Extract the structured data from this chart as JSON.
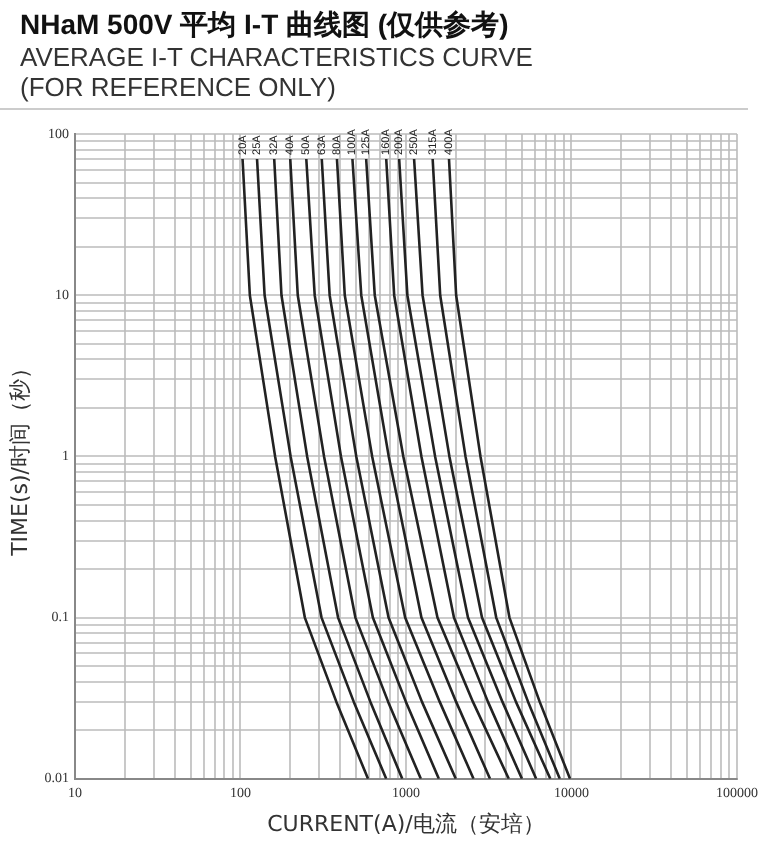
{
  "chart_data": {
    "type": "line",
    "title": "NHaM 500V 平均 I-T 曲线图 (仅供参考)",
    "subtitle": "AVERAGE I-T CHARACTERISTICS CURVE\n(FOR REFERENCE ONLY)",
    "xlabel": "CURRENT(A)/电流（安培）",
    "ylabel": "TIME(s)/时间（秒）",
    "log": "xy",
    "grid": true,
    "legend": false,
    "marker": "none",
    "line_style": "solid",
    "xlim": [
      10,
      100000
    ],
    "ylim": [
      0.01,
      100
    ],
    "xticks": [
      10,
      {
        "value": 20,
        "label": null
      },
      {
        "value": 30,
        "label": null
      },
      {
        "value": 40,
        "label": null
      },
      {
        "value": 50,
        "label": null
      },
      {
        "value": 60,
        "label": null
      },
      {
        "value": 70,
        "label": null
      },
      {
        "value": 80,
        "label": null
      },
      {
        "value": 90,
        "label": null
      },
      100,
      {
        "value": 200,
        "label": null
      },
      {
        "value": 300,
        "label": null
      },
      {
        "value": 400,
        "label": null
      },
      {
        "value": 500,
        "label": null
      },
      {
        "value": 600,
        "label": null
      },
      {
        "value": 700,
        "label": null
      },
      {
        "value": 800,
        "label": null
      },
      {
        "value": 900,
        "label": null
      },
      1000,
      {
        "value": 2000,
        "label": null
      },
      {
        "value": 3000,
        "label": null
      },
      {
        "value": 4000,
        "label": null
      },
      {
        "value": 5000,
        "label": null
      },
      {
        "value": 6000,
        "label": null
      },
      {
        "value": 7000,
        "label": null
      },
      {
        "value": 8000,
        "label": null
      },
      {
        "value": 9000,
        "label": null
      },
      10000,
      {
        "value": 20000,
        "label": null
      },
      {
        "value": 30000,
        "label": null
      },
      {
        "value": 40000,
        "label": null
      },
      {
        "value": 50000,
        "label": null
      },
      {
        "value": 60000,
        "label": null
      },
      {
        "value": 70000,
        "label": null
      },
      {
        "value": 80000,
        "label": null
      },
      {
        "value": 90000,
        "label": null
      },
      100000
    ],
    "yticks": [
      0.01,
      {
        "value": 0.02,
        "label": null
      },
      {
        "value": 0.03,
        "label": null
      },
      {
        "value": 0.04,
        "label": null
      },
      {
        "value": 0.05,
        "label": null
      },
      {
        "value": 0.06,
        "label": null
      },
      {
        "value": 0.07,
        "label": null
      },
      {
        "value": 0.08,
        "label": null
      },
      {
        "value": 0.09,
        "label": null
      },
      0.1,
      {
        "value": 0.2,
        "label": null
      },
      {
        "value": 0.3,
        "label": null
      },
      {
        "value": 0.4,
        "label": null
      },
      {
        "value": 0.5,
        "label": null
      },
      {
        "value": 0.6,
        "label": null
      },
      {
        "value": 0.7,
        "label": null
      },
      {
        "value": 0.8,
        "label": null
      },
      {
        "value": 0.9,
        "label": null
      },
      1,
      {
        "value": 2,
        "label": null
      },
      {
        "value": 3,
        "label": null
      },
      {
        "value": 4,
        "label": null
      },
      {
        "value": 5,
        "label": null
      },
      {
        "value": 6,
        "label": null
      },
      {
        "value": 7,
        "label": null
      },
      {
        "value": 8,
        "label": null
      },
      {
        "value": 9,
        "label": null
      },
      10,
      {
        "value": 20,
        "label": null
      },
      {
        "value": 30,
        "label": null
      },
      {
        "value": 40,
        "label": null
      },
      {
        "value": 50,
        "label": null
      },
      {
        "value": 60,
        "label": null
      },
      {
        "value": 70,
        "label": null
      },
      {
        "value": 80,
        "label": null
      },
      {
        "value": 90,
        "label": null
      },
      100
    ],
    "series": [
      {
        "name": "20A",
        "color": "#222222",
        "x": [
          103,
          114,
          162,
          245,
          380,
          590
        ],
        "values": [
          70,
          10,
          1,
          0.1,
          0.03,
          0.01
        ]
      },
      {
        "name": "25A",
        "color": "#222222",
        "x": [
          126,
          140,
          201,
          309,
          484,
          760
        ],
        "values": [
          70,
          10,
          1,
          0.1,
          0.03,
          0.01
        ]
      },
      {
        "name": "32A",
        "color": "#222222",
        "x": [
          160,
          177,
          253,
          389,
          610,
          950
        ],
        "values": [
          70,
          10,
          1,
          0.1,
          0.03,
          0.01
        ]
      },
      {
        "name": "40A",
        "color": "#222222",
        "x": [
          200,
          222,
          320,
          495,
          781,
          1230
        ],
        "values": [
          70,
          10,
          1,
          0.1,
          0.03,
          0.01
        ]
      },
      {
        "name": "50A",
        "color": "#222222",
        "x": [
          250,
          281,
          405,
          631,
          1000,
          1580
        ],
        "values": [
          70,
          10,
          1,
          0.1,
          0.03,
          0.01
        ]
      },
      {
        "name": "63A",
        "color": "#222222",
        "x": [
          310,
          346,
          501,
          785,
          1250,
          2000
        ],
        "values": [
          70,
          10,
          1,
          0.1,
          0.03,
          0.01
        ]
      },
      {
        "name": "80A",
        "color": "#222222",
        "x": [
          383,
          427,
          625,
          989,
          1600,
          2560
        ],
        "values": [
          70,
          10,
          1,
          0.1,
          0.03,
          0.01
        ]
      },
      {
        "name": "100A",
        "color": "#222222",
        "x": [
          475,
          537,
          787,
          1240,
          2010,
          3220
        ],
        "values": [
          70,
          10,
          1,
          0.1,
          0.03,
          0.01
        ]
      },
      {
        "name": "125A",
        "color": "#222222",
        "x": [
          575,
          648,
          964,
          1550,
          2540,
          4180
        ],
        "values": [
          70,
          10,
          1,
          0.1,
          0.03,
          0.01
        ]
      },
      {
        "name": "160A",
        "color": "#222222",
        "x": [
          760,
          849,
          1240,
          1950,
          3130,
          5020
        ],
        "values": [
          70,
          10,
          1,
          0.1,
          0.03,
          0.01
        ]
      },
      {
        "name": "200A",
        "color": "#222222",
        "x": [
          910,
          1020,
          1500,
          2370,
          3830,
          6120
        ],
        "values": [
          70,
          10,
          1,
          0.1,
          0.03,
          0.01
        ]
      },
      {
        "name": "250A",
        "color": "#222222",
        "x": [
          1120,
          1260,
          1830,
          2880,
          4620,
          7450
        ],
        "values": [
          70,
          10,
          1,
          0.1,
          0.03,
          0.01
        ]
      },
      {
        "name": "315A",
        "color": "#222222",
        "x": [
          1450,
          1610,
          2290,
          3510,
          5470,
          8500
        ],
        "values": [
          70,
          10,
          1,
          0.1,
          0.03,
          0.01
        ]
      },
      {
        "name": "400A",
        "color": "#222222",
        "x": [
          1820,
          2010,
          2820,
          4220,
          6430,
          9800
        ],
        "values": [
          70,
          10,
          1,
          0.1,
          0.03,
          0.01
        ]
      }
    ]
  }
}
